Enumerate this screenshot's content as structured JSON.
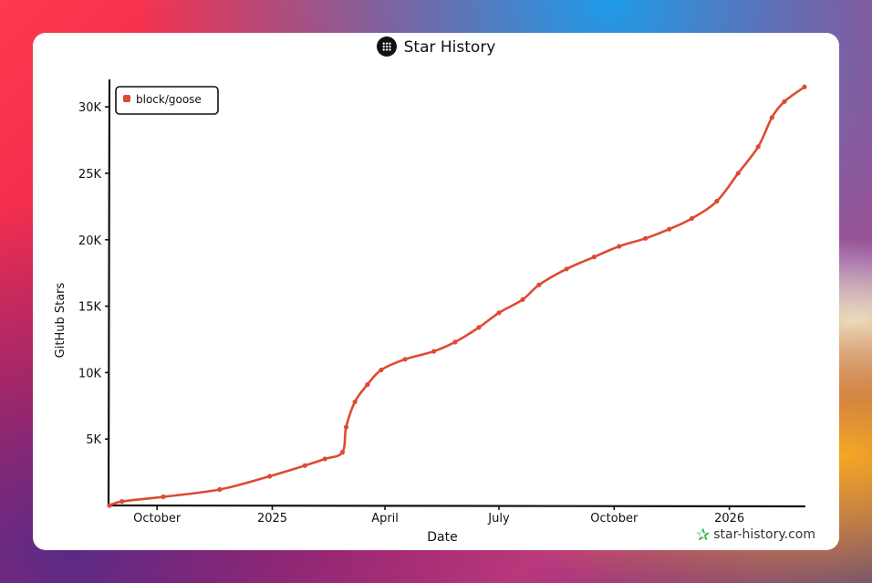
{
  "header": {
    "title": "Star History",
    "logo_icon": "star-history-logo-icon"
  },
  "watermark": {
    "text": "star-history.com",
    "icon": "star-icon",
    "icon_color": "#22b33a"
  },
  "chart_data": {
    "type": "line",
    "title": "Star History",
    "xlabel": "Date",
    "ylabel": "GitHub Stars",
    "ylim": [
      0,
      32000
    ],
    "yticks": [
      5000,
      10000,
      15000,
      20000,
      25000,
      30000
    ],
    "ytick_labels": [
      "5K",
      "10K",
      "15K",
      "20K",
      "25K",
      "30K"
    ],
    "xlim": [
      "2024-08-24",
      "2026-03-02"
    ],
    "xticks": [
      "2024-10-01",
      "2025-01-01",
      "2025-04-01",
      "2025-07-01",
      "2025-10-01",
      "2026-01-01"
    ],
    "xtick_labels": [
      "October",
      "2025",
      "April",
      "July",
      "October",
      "2026"
    ],
    "legend": {
      "position": "top-left"
    },
    "grid": false,
    "series": [
      {
        "name": "block/goose",
        "color": "#dd4b32",
        "points": [
          [
            "2024-08-24",
            0
          ],
          [
            "2024-09-03",
            300
          ],
          [
            "2024-10-06",
            650
          ],
          [
            "2024-11-20",
            1200
          ],
          [
            "2024-12-30",
            2200
          ],
          [
            "2025-01-27",
            3000
          ],
          [
            "2025-02-12",
            3500
          ],
          [
            "2025-02-26",
            4000
          ],
          [
            "2025-03-01",
            5900
          ],
          [
            "2025-03-08",
            7800
          ],
          [
            "2025-03-18",
            9100
          ],
          [
            "2025-03-29",
            10200
          ],
          [
            "2025-04-17",
            11000
          ],
          [
            "2025-05-10",
            11600
          ],
          [
            "2025-05-27",
            12300
          ],
          [
            "2025-06-15",
            13400
          ],
          [
            "2025-07-01",
            14500
          ],
          [
            "2025-07-20",
            15500
          ],
          [
            "2025-08-02",
            16600
          ],
          [
            "2025-08-24",
            17800
          ],
          [
            "2025-09-15",
            18700
          ],
          [
            "2025-10-05",
            19500
          ],
          [
            "2025-10-26",
            20100
          ],
          [
            "2025-11-14",
            20800
          ],
          [
            "2025-12-02",
            21600
          ],
          [
            "2025-12-22",
            22900
          ],
          [
            "2026-01-08",
            25000
          ],
          [
            "2026-01-24",
            27000
          ],
          [
            "2026-02-04",
            29200
          ],
          [
            "2026-02-14",
            30400
          ],
          [
            "2026-03-02",
            31500
          ]
        ]
      }
    ]
  }
}
